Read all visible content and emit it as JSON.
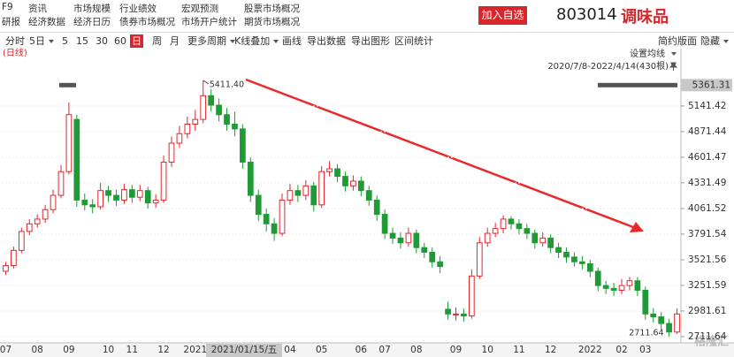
{
  "header": {
    "menu": [
      [
        "F9",
        "研报"
      ],
      [
        "资讯",
        "经济数据"
      ],
      [
        "市场规模",
        "经济日历"
      ],
      [
        "行业绩效",
        "债券市场概况"
      ],
      [
        "宏观预测",
        "市场开户统计"
      ],
      [
        "股票市场概况",
        "期货市场概况"
      ]
    ],
    "button": "加入自选",
    "code": "803014",
    "name": "调味品",
    "watermark": "格隆汇"
  },
  "toolbar": {
    "left": [
      {
        "label": "分时"
      },
      {
        "label": "5日",
        "dropdown": true
      },
      {
        "label": "5"
      },
      {
        "label": "15"
      },
      {
        "label": "30"
      },
      {
        "label": "60"
      },
      {
        "label": "日",
        "selected": true
      },
      {
        "label": "周"
      },
      {
        "label": "月"
      },
      {
        "label": "更多周期",
        "dropdown": true
      },
      {
        "label": "K线叠加",
        "dropdown": true
      },
      {
        "label": "画线"
      },
      {
        "label": "导出数据"
      },
      {
        "label": "导出图形"
      },
      {
        "label": "区间统计"
      }
    ],
    "right": [
      {
        "label": "简约版面"
      },
      {
        "label": "隐藏",
        "dropdown": true
      }
    ]
  },
  "chart_data": {
    "type": "candlestick",
    "period_label": "(日线)",
    "ma_setting": "设置均线",
    "range_label": "2020/7/8-2022/4/14(430根)",
    "up_color": "#e3262b",
    "down_color": "#1f9a36",
    "grid": true,
    "ylim": [
      2646,
      5746
    ],
    "yticks": [
      5141.42,
      4871.44,
      4601.47,
      4331.49,
      4061.52,
      3791.54,
      3521.56,
      3251.59,
      2981.61,
      2711.64
    ],
    "crosshair": {
      "date": "2021/01/15/五",
      "value": 5361.31
    },
    "max_label": "5411.40",
    "min_label": "2711.64",
    "categories": [
      "07",
      null,
      null,
      null,
      "08",
      null,
      null,
      null,
      "09",
      null,
      null,
      null,
      null,
      "10",
      null,
      null,
      "11",
      null,
      null,
      null,
      "12",
      null,
      null,
      null,
      "2021",
      null,
      null,
      null,
      null,
      null,
      null,
      null,
      null,
      null,
      null,
      null,
      "04",
      null,
      null,
      null,
      "05",
      null,
      null,
      null,
      null,
      "06",
      null,
      null,
      "07",
      null,
      null,
      null,
      "08",
      null,
      null,
      null,
      null,
      "09",
      null,
      null,
      null,
      "10",
      null,
      null,
      null,
      "11",
      null,
      null,
      null,
      "12",
      null,
      null,
      null,
      null,
      "2022",
      null,
      null,
      null,
      "02",
      null,
      null,
      "03",
      null,
      null,
      null,
      null
    ],
    "open": [
      3400,
      3460,
      3620,
      3820,
      3900,
      3950,
      4050,
      4200,
      4450,
      5000,
      4150,
      4100,
      4080,
      4250,
      4200,
      4150,
      4260,
      4180,
      4250,
      4120,
      4150,
      4550,
      4750,
      4850,
      4950,
      5000,
      5250,
      5150,
      5050,
      4950,
      4900,
      4550,
      4200,
      4000,
      3900,
      3800,
      4150,
      4250,
      4200,
      4300,
      4100,
      4450,
      4480,
      4400,
      4300,
      4350,
      4250,
      4150,
      4000,
      3800,
      3750,
      3700,
      3800,
      3650,
      3600,
      3500,
      3000,
      2950,
      2950,
      2930,
      3350,
      3700,
      3800,
      3850,
      3950,
      3900,
      3850,
      3800,
      3700,
      3750,
      3650,
      3600,
      3550,
      3500,
      3480,
      3400,
      3250,
      3220,
      3200,
      3250,
      3300,
      3200,
      2950,
      2920,
      2850,
      2760
    ],
    "high": [
      3500,
      3660,
      3860,
      3950,
      4000,
      4100,
      4260,
      4520,
      5180,
      5050,
      4220,
      4160,
      4330,
      4300,
      4260,
      4320,
      4310,
      4310,
      4290,
      4210,
      4620,
      4820,
      4930,
      5030,
      5100,
      5411.4,
      5320,
      5220,
      5120,
      5080,
      4950,
      4600,
      4260,
      4060,
      3960,
      4220,
      4320,
      4310,
      4360,
      4340,
      4510,
      4560,
      4530,
      4450,
      4410,
      4400,
      4300,
      4200,
      4050,
      3860,
      3810,
      3860,
      3840,
      3700,
      3650,
      3560,
      3080,
      3020,
      3010,
      3420,
      3760,
      3860,
      3910,
      3990,
      3980,
      3950,
      3900,
      3840,
      3810,
      3790,
      3700,
      3650,
      3600,
      3560,
      3520,
      3440,
      3300,
      3280,
      3320,
      3340,
      3340,
      3240,
      3010,
      2970,
      2900,
      3010
    ],
    "low": [
      3360,
      3430,
      3590,
      3780,
      3860,
      3910,
      4010,
      4170,
      4420,
      4080,
      4040,
      4010,
      4050,
      4130,
      4090,
      4110,
      4120,
      4140,
      4060,
      4070,
      4120,
      4500,
      4700,
      4800,
      4880,
      4960,
      5080,
      4980,
      4880,
      4820,
      4480,
      4130,
      3930,
      3820,
      3720,
      3770,
      4100,
      4130,
      4150,
      4030,
      4070,
      4400,
      4340,
      4240,
      4250,
      4190,
      4090,
      3930,
      3740,
      3690,
      3640,
      3660,
      3590,
      3540,
      3440,
      3380,
      2890,
      2880,
      2870,
      2900,
      3320,
      3660,
      3760,
      3800,
      3840,
      3790,
      3740,
      3640,
      3660,
      3590,
      3540,
      3490,
      3450,
      3420,
      3340,
      3190,
      3160,
      3140,
      3160,
      3200,
      3140,
      2890,
      2860,
      2790,
      2711.64,
      2740
    ],
    "close": [
      3460,
      3620,
      3820,
      3900,
      3950,
      4050,
      4200,
      4450,
      5050,
      4150,
      4100,
      4080,
      4250,
      4200,
      4150,
      4260,
      4180,
      4250,
      4120,
      4150,
      4550,
      4750,
      4850,
      4950,
      5000,
      5250,
      5150,
      5050,
      4950,
      4900,
      4550,
      4200,
      4000,
      3900,
      3800,
      4150,
      4250,
      4200,
      4300,
      4100,
      4450,
      4480,
      4400,
      4300,
      4350,
      4250,
      4150,
      4000,
      3800,
      3750,
      3700,
      3800,
      3650,
      3600,
      3500,
      3450,
      2950,
      2950,
      2930,
      3350,
      3700,
      3800,
      3850,
      3950,
      3900,
      3850,
      3800,
      3700,
      3750,
      3650,
      3600,
      3550,
      3500,
      3480,
      3400,
      3250,
      3220,
      3200,
      3250,
      3300,
      3200,
      2950,
      2920,
      2850,
      2760,
      2950
    ]
  }
}
